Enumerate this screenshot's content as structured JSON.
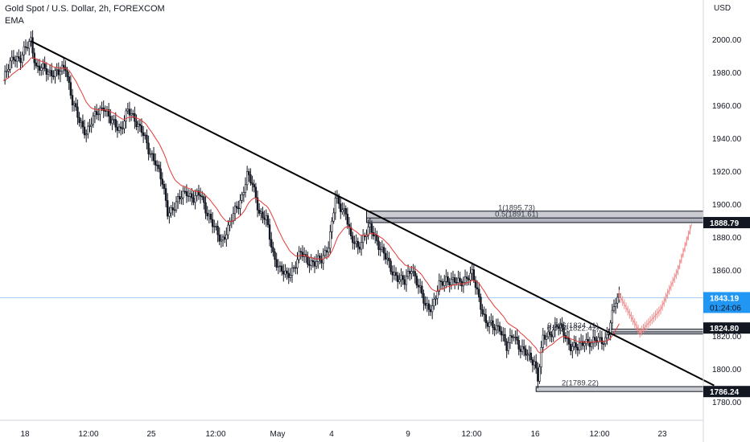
{
  "header": {
    "title": "Gold Spot / U.S. Dollar, 2h, FOREXCOM",
    "indicator": "EMA"
  },
  "chart_data": {
    "type": "candlestick",
    "symbol": "Gold Spot / U.S. Dollar",
    "interval": "2h",
    "source": "FOREXCOM",
    "indicator": "EMA",
    "y_unit": "USD",
    "ylim": [
      1775,
      2012
    ],
    "y_ticks": [
      1780,
      1800,
      1820,
      1840,
      1860,
      1880,
      1900,
      1920,
      1940,
      1960,
      1980,
      2000
    ],
    "y_tick_labels": [
      "1780.00",
      "1800.00",
      "1820.00",
      "1840.00",
      "1860.00",
      "1880.00",
      "1900.00",
      "1920.00",
      "1940.00",
      "1960.00",
      "1980.00",
      "2000.00"
    ],
    "x_tick_labels": [
      "18",
      "12:00",
      "25",
      "12:00",
      "May",
      "4",
      "9",
      "12:00",
      "16",
      "12:00",
      "23"
    ],
    "price_path": [
      [
        0,
        1975
      ],
      [
        6,
        1990
      ],
      [
        10,
        1988
      ],
      [
        14,
        1996
      ],
      [
        16,
        2000
      ],
      [
        19,
        1983
      ],
      [
        25,
        1981
      ],
      [
        32,
        1979
      ],
      [
        36,
        1984
      ],
      [
        40,
        1962
      ],
      [
        44,
        1950
      ],
      [
        48,
        1944
      ],
      [
        54,
        1955
      ],
      [
        58,
        1960
      ],
      [
        62,
        1950
      ],
      [
        68,
        1946
      ],
      [
        72,
        1956
      ],
      [
        76,
        1952
      ],
      [
        80,
        1945
      ],
      [
        84,
        1932
      ],
      [
        88,
        1927
      ],
      [
        92,
        1912
      ],
      [
        95,
        1895
      ],
      [
        98,
        1898
      ],
      [
        102,
        1903
      ],
      [
        106,
        1908
      ],
      [
        110,
        1903
      ],
      [
        114,
        1906
      ],
      [
        118,
        1895
      ],
      [
        122,
        1885
      ],
      [
        126,
        1878
      ],
      [
        130,
        1885
      ],
      [
        134,
        1896
      ],
      [
        138,
        1905
      ],
      [
        141,
        1917
      ],
      [
        144,
        1912
      ],
      [
        146,
        1905
      ],
      [
        148,
        1895
      ],
      [
        152,
        1890
      ],
      [
        156,
        1870
      ],
      [
        160,
        1860
      ],
      [
        164,
        1856
      ],
      [
        168,
        1862
      ],
      [
        172,
        1870
      ],
      [
        176,
        1866
      ],
      [
        180,
        1864
      ],
      [
        184,
        1866
      ],
      [
        188,
        1876
      ],
      [
        190,
        1888
      ],
      [
        192,
        1903
      ],
      [
        195,
        1898
      ],
      [
        198,
        1896
      ],
      [
        201,
        1878
      ],
      [
        205,
        1874
      ],
      [
        208,
        1880
      ],
      [
        212,
        1885
      ],
      [
        216,
        1878
      ],
      [
        220,
        1870
      ],
      [
        224,
        1860
      ],
      [
        228,
        1856
      ],
      [
        232,
        1852
      ],
      [
        236,
        1862
      ],
      [
        240,
        1850
      ],
      [
        244,
        1838
      ],
      [
        248,
        1838
      ],
      [
        252,
        1850
      ],
      [
        256,
        1855
      ],
      [
        260,
        1853
      ],
      [
        264,
        1852
      ],
      [
        268,
        1856
      ],
      [
        271,
        1857
      ],
      [
        275,
        1843
      ],
      [
        279,
        1828
      ],
      [
        283,
        1825
      ],
      [
        287,
        1826
      ],
      [
        291,
        1812
      ],
      [
        295,
        1822
      ],
      [
        299,
        1812
      ],
      [
        303,
        1808
      ],
      [
        307,
        1805
      ],
      [
        309,
        1794
      ],
      [
        312,
        1818
      ],
      [
        316,
        1822
      ],
      [
        320,
        1826
      ],
      [
        324,
        1822
      ],
      [
        328,
        1814
      ],
      [
        332,
        1812
      ],
      [
        336,
        1818
      ],
      [
        340,
        1815
      ],
      [
        344,
        1818
      ],
      [
        348,
        1818
      ],
      [
        350,
        1822
      ],
      [
        354,
        1842
      ],
      [
        356,
        1845
      ]
    ],
    "projection": [
      [
        356,
        1845
      ],
      [
        368,
        1822
      ],
      [
        380,
        1836
      ],
      [
        390,
        1860
      ],
      [
        398,
        1888
      ]
    ],
    "trendline": {
      "start": [
        16,
        1999
      ],
      "end": [
        376,
        1807
      ]
    },
    "boxes": [
      {
        "label": "1(1895.73)",
        "top": 1895.73,
        "bottom": 1888.79,
        "x_start": 210
      },
      {
        "label": "0.5(1891.61)",
        "top": 1891.61,
        "bottom": 1888.79,
        "x_start": 210
      },
      {
        "label": "0.786(1824.11)",
        "top": 1824.11,
        "bottom": 1822.42,
        "x_start": 350
      },
      {
        "label": "0.618(1822.42)",
        "top": 1822.42,
        "bottom": 1821.5,
        "x_start": 350
      },
      {
        "label": "2(1789.22)",
        "top": 1789.22,
        "bottom": 1786.24,
        "x_start": 308
      }
    ],
    "price_tags": [
      {
        "label": "1888.79",
        "value": 1888.79,
        "style": "dark"
      },
      {
        "label": "1824.80",
        "value": 1824.8,
        "style": "dark"
      },
      {
        "label": "1786.24",
        "value": 1786.24,
        "style": "dark"
      }
    ],
    "current_price": {
      "label": "1843.19",
      "countdown": "01:24:06",
      "value": 1843.19
    },
    "colors": {
      "candle": "#131722",
      "ema": "#e53935",
      "projection": "#f08c8c",
      "box_fill": "#9ea3ad",
      "box_stroke": "#131722",
      "current_price": "#2196f3",
      "current_line": "#a7cdf7"
    }
  }
}
